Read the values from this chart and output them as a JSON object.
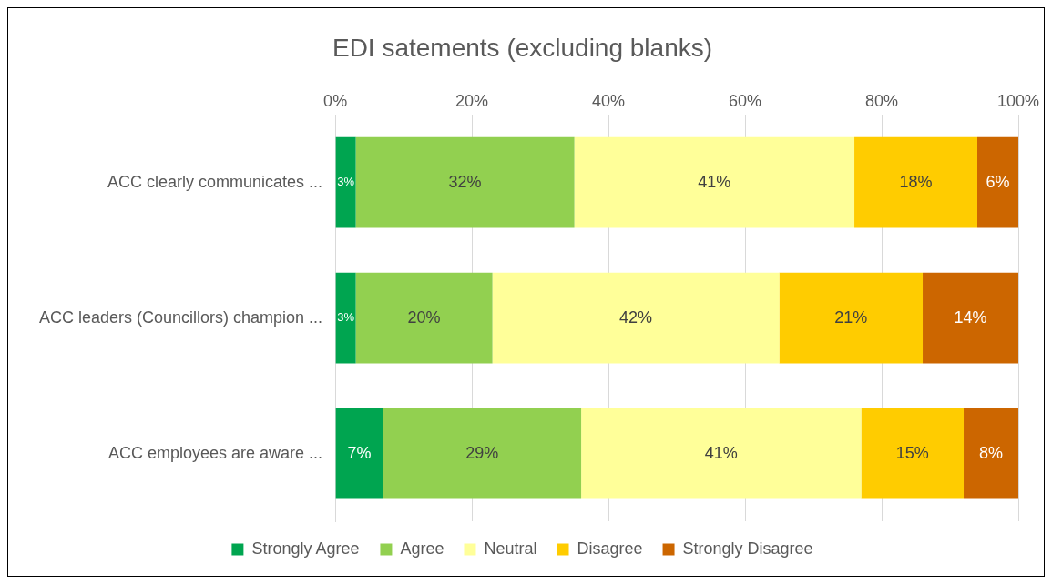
{
  "chart_data": {
    "type": "bar",
    "title": "EDI satements (excluding blanks)",
    "orientation": "horizontal",
    "stacked": true,
    "categories": [
      "ACC clearly communicates ...",
      "ACC leaders (Councillors) champion ...",
      "ACC employees are aware ..."
    ],
    "series": [
      {
        "name": "Strongly Agree",
        "color": "#00a550",
        "values": [
          3,
          3,
          7
        ],
        "value_labels": [
          "3%",
          "3%",
          "7%"
        ]
      },
      {
        "name": "Agree",
        "color": "#92d050",
        "values": [
          32,
          20,
          29
        ],
        "value_labels": [
          "32%",
          "20%",
          "29%"
        ]
      },
      {
        "name": "Neutral",
        "color": "#ffff99",
        "values": [
          41,
          42,
          41
        ],
        "value_labels": [
          "41%",
          "42%",
          "41%"
        ]
      },
      {
        "name": "Disagree",
        "color": "#ffcc00",
        "values": [
          18,
          21,
          15
        ],
        "value_labels": [
          "18%",
          "21%",
          "15%"
        ]
      },
      {
        "name": "Strongly Disagree",
        "color": "#cc6600",
        "values": [
          6,
          14,
          8
        ],
        "value_labels": [
          "6%",
          "14%",
          "8%"
        ]
      }
    ],
    "xlim": [
      0,
      100
    ],
    "xticks": [
      {
        "value": 0,
        "label": "0%"
      },
      {
        "value": 20,
        "label": "20%"
      },
      {
        "value": 40,
        "label": "40%"
      },
      {
        "value": 60,
        "label": "60%"
      },
      {
        "value": 80,
        "label": "80%"
      },
      {
        "value": 100,
        "label": "100%"
      }
    ],
    "grid": "x",
    "legend": "bottom"
  }
}
